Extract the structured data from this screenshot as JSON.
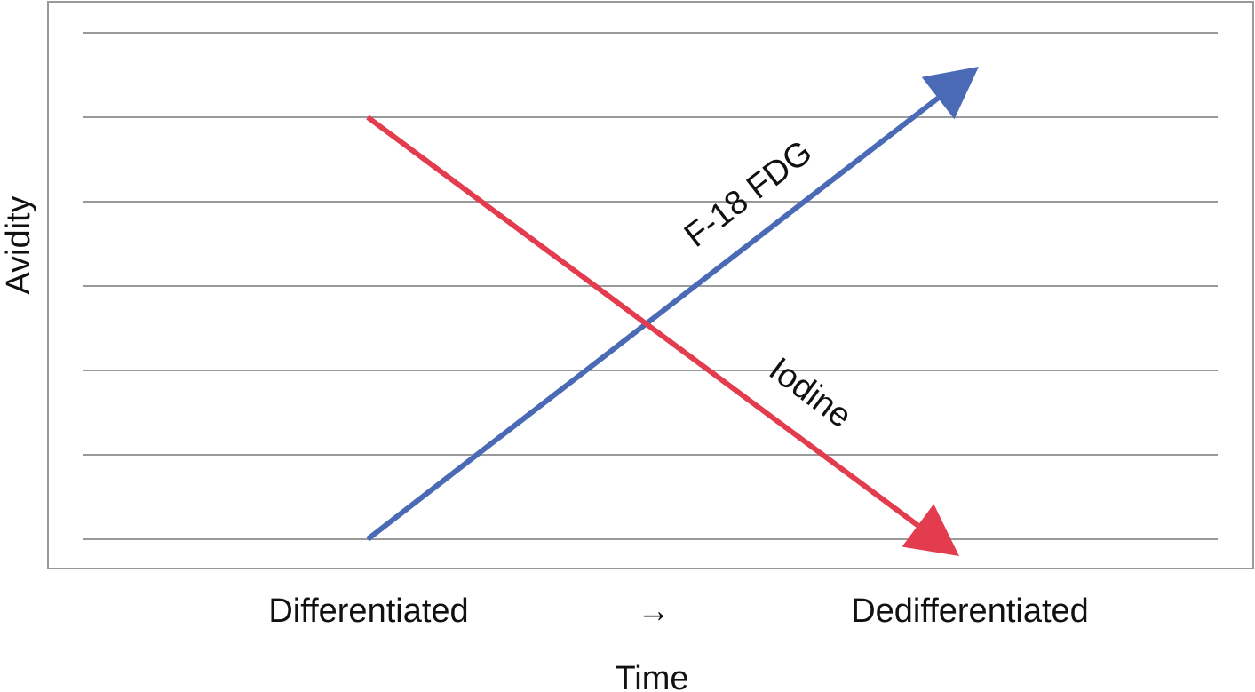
{
  "chart_data": {
    "type": "line",
    "title": "",
    "ylabel": "Avidity",
    "xlabel": "Time",
    "x_axis_labels": [
      "Differentiated",
      "→",
      "Dedifferentiated"
    ],
    "ylim": [
      0,
      6
    ],
    "grid": true,
    "series": [
      {
        "name": "F-18 FDG",
        "color": "#4a6ab5",
        "points": [
          {
            "x": "Differentiated",
            "y": 0
          },
          {
            "x": "Dedifferentiated",
            "y": 5.6
          }
        ]
      },
      {
        "name": "Iodine",
        "color": "#e23c4e",
        "points": [
          {
            "x": "Differentiated",
            "y": 5
          },
          {
            "x": "Dedifferentiated",
            "y": -0.2
          }
        ]
      }
    ]
  }
}
